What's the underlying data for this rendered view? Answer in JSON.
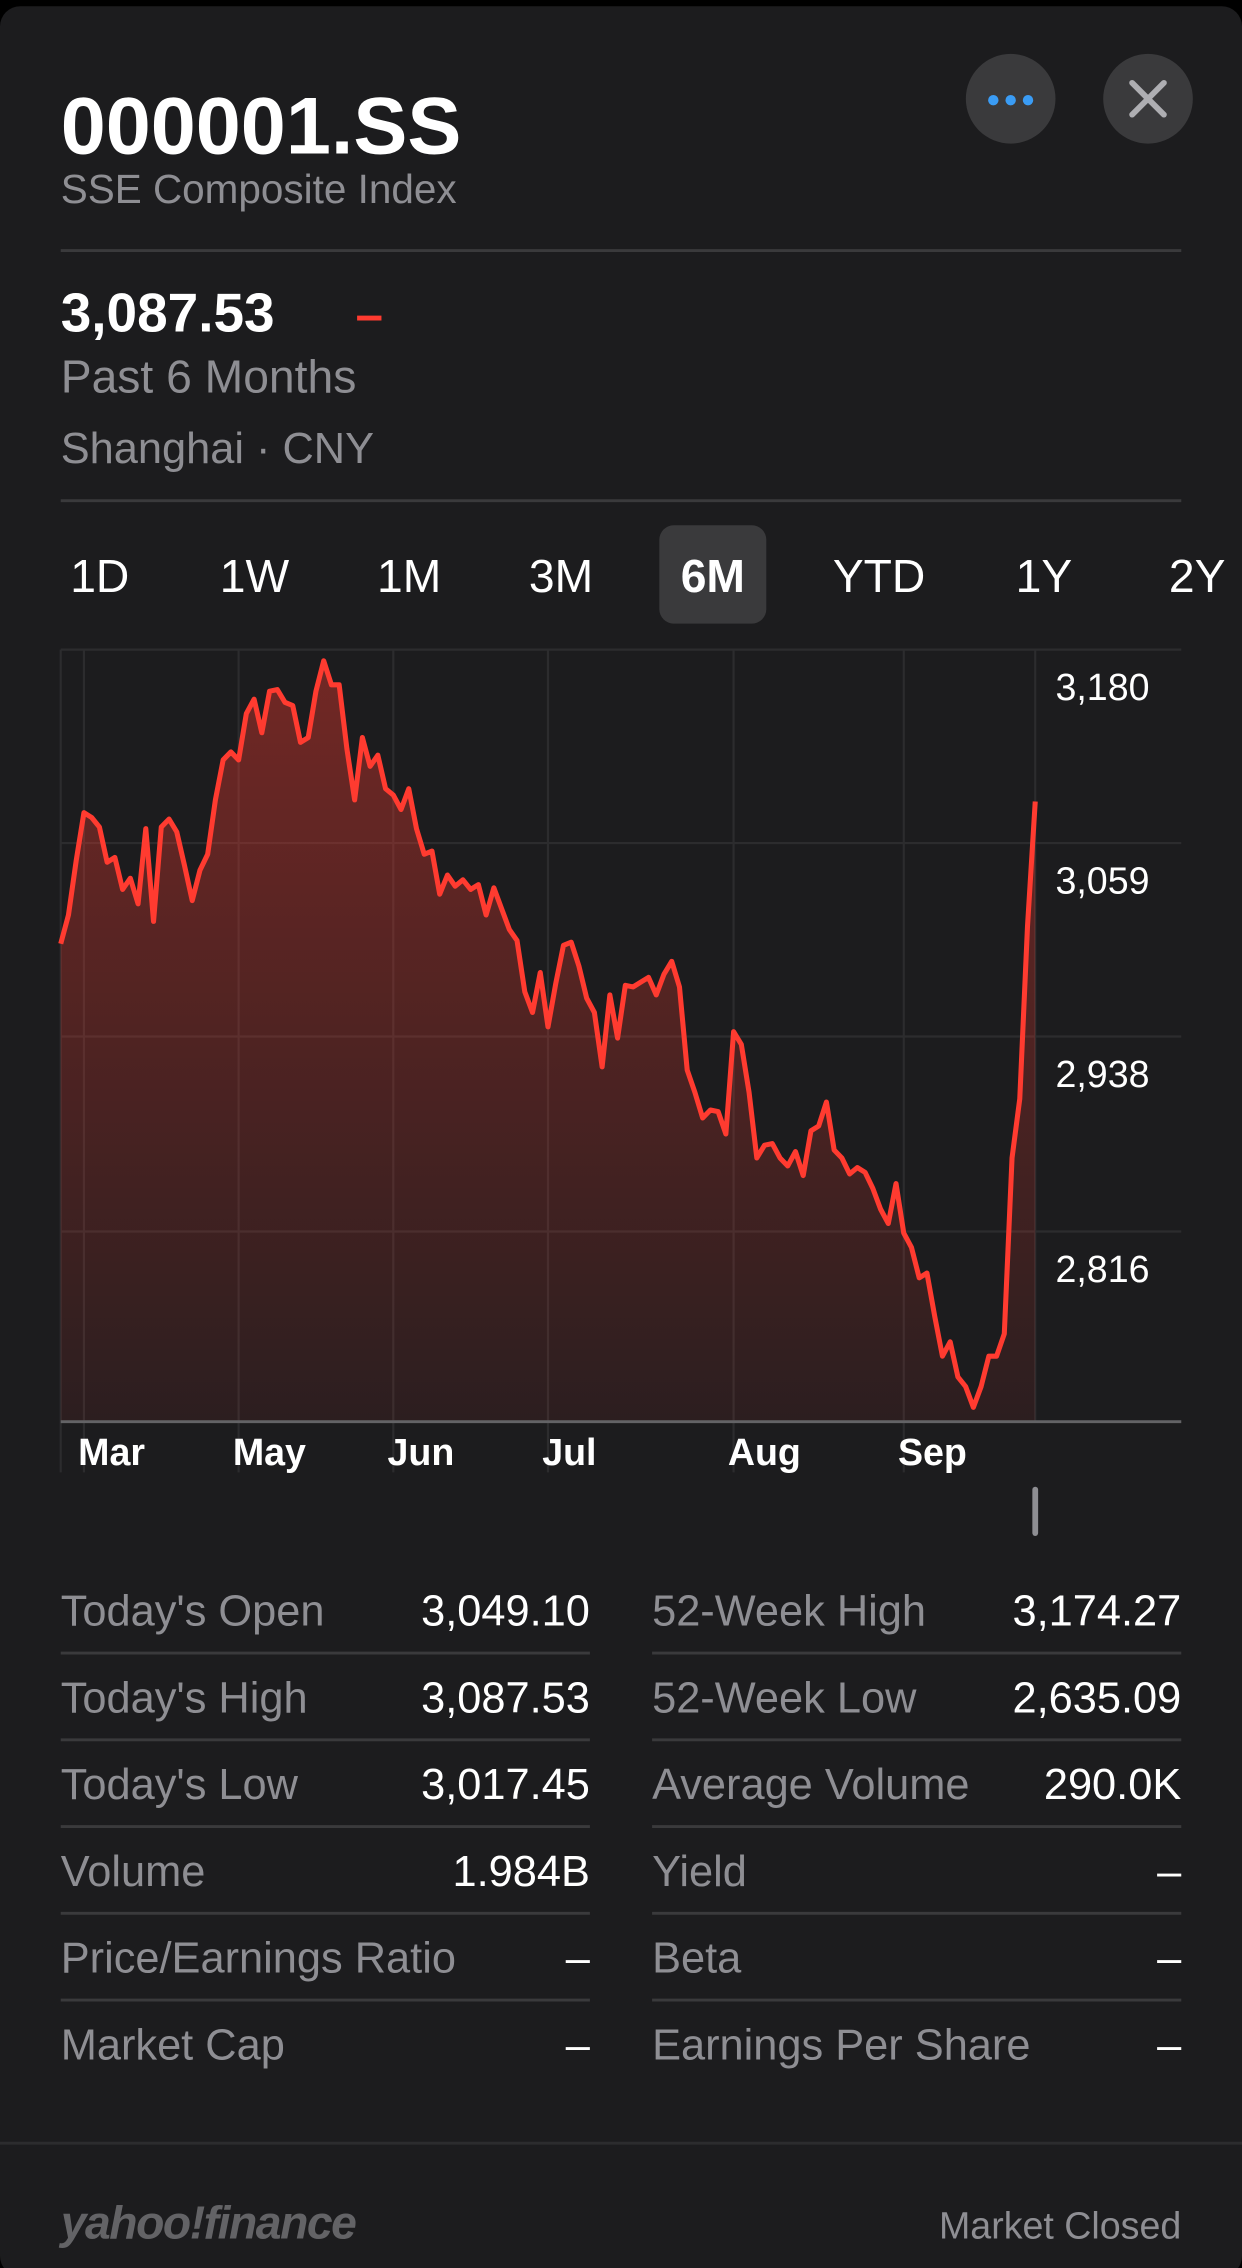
{
  "header": {
    "symbol": "000001.SS",
    "name": "SSE Composite Index"
  },
  "quote": {
    "price": "3,087.53",
    "change": "–",
    "period": "Past 6 Months",
    "exchange": "Shanghai · CNY"
  },
  "ranges": [
    "1D",
    "1W",
    "1M",
    "3M",
    "6M",
    "YTD",
    "1Y",
    "2Y"
  ],
  "selected_range": 4,
  "chart_data": {
    "type": "line",
    "color": "#ff3b30",
    "categories": [
      null,
      null,
      null,
      "Mar",
      null,
      null,
      null,
      null,
      null,
      null,
      null,
      null,
      null,
      null,
      null,
      null,
      null,
      null,
      null,
      null,
      null,
      null,
      null,
      "May",
      null,
      null,
      null,
      null,
      null,
      null,
      null,
      null,
      null,
      null,
      null,
      null,
      null,
      null,
      null,
      null,
      null,
      null,
      null,
      "Jun",
      null,
      null,
      null,
      null,
      null,
      null,
      null,
      null,
      null,
      null,
      null,
      null,
      null,
      null,
      null,
      null,
      null,
      null,
      null,
      "Jul",
      null,
      null,
      null,
      null,
      null,
      null,
      null,
      null,
      null,
      null,
      null,
      null,
      null,
      null,
      null,
      null,
      null,
      null,
      null,
      null,
      null,
      null,
      null,
      "Aug",
      null,
      null,
      null,
      null,
      null,
      null,
      null,
      null,
      null,
      null,
      null,
      null,
      null,
      null,
      null,
      null,
      null,
      null,
      null,
      null,
      null,
      "Sep",
      null,
      null,
      null,
      null,
      null,
      null,
      null,
      null,
      null,
      null,
      null,
      null,
      null,
      null,
      null,
      null,
      null
    ],
    "values": [
      2996,
      3014,
      3048,
      3078,
      3075,
      3069,
      3047,
      3050,
      3030,
      3037,
      3021,
      3068,
      3010,
      3069,
      3074,
      3066,
      3045,
      3023,
      3042,
      3052,
      3086,
      3111,
      3116,
      3111,
      3140,
      3149,
      3128,
      3154,
      3155,
      3147,
      3145,
      3122,
      3125,
      3154,
      3173,
      3158,
      3158,
      3118,
      3086,
      3125,
      3107,
      3114,
      3093,
      3089,
      3080,
      3093,
      3068,
      3052,
      3054,
      3027,
      3039,
      3032,
      3036,
      3030,
      3033,
      3014,
      3031,
      3018,
      3005,
      2998,
      2966,
      2953,
      2978,
      2944,
      2971,
      2995,
      2997,
      2982,
      2962,
      2953,
      2919,
      2964,
      2937,
      2970,
      2969,
      2972,
      2975,
      2964,
      2977,
      2985,
      2969,
      2917,
      2903,
      2887,
      2892,
      2891,
      2877,
      2941,
      2933,
      2903,
      2862,
      2870,
      2871,
      2862,
      2857,
      2866,
      2851,
      2879,
      2882,
      2897,
      2867,
      2862,
      2852,
      2856,
      2853,
      2843,
      2830,
      2821,
      2846,
      2815,
      2806,
      2787,
      2790,
      2763,
      2738,
      2747,
      2725,
      2719,
      2706,
      2719,
      2738,
      2738,
      2752,
      2862,
      2899,
      3007,
      3085
    ],
    "ylim": [
      2697,
      3180
    ],
    "yticks": [
      {
        "value": 3180,
        "label": "3,180"
      },
      {
        "value": 3059,
        "label": "3,059"
      },
      {
        "value": 2938,
        "label": "2,938"
      },
      {
        "value": 2816,
        "label": "2,816"
      }
    ],
    "grid": true
  },
  "stats": {
    "left": [
      [
        "Today's Open",
        "3,049.10"
      ],
      [
        "Today's High",
        "3,087.53"
      ],
      [
        "Today's Low",
        "3,017.45"
      ],
      [
        "Volume",
        "1.984B"
      ],
      [
        "Price/Earnings Ratio",
        "–"
      ],
      [
        "Market Cap",
        "–"
      ]
    ],
    "right": [
      [
        "52-Week High",
        "3,174.27"
      ],
      [
        "52-Week Low",
        "2,635.09"
      ],
      [
        "Average Volume",
        "290.0K"
      ],
      [
        "Yield",
        "–"
      ],
      [
        "Beta",
        "–"
      ],
      [
        "Earnings Per Share",
        "–"
      ]
    ]
  },
  "footer": {
    "brand": "yahoo!finance",
    "status": "Market Closed"
  }
}
